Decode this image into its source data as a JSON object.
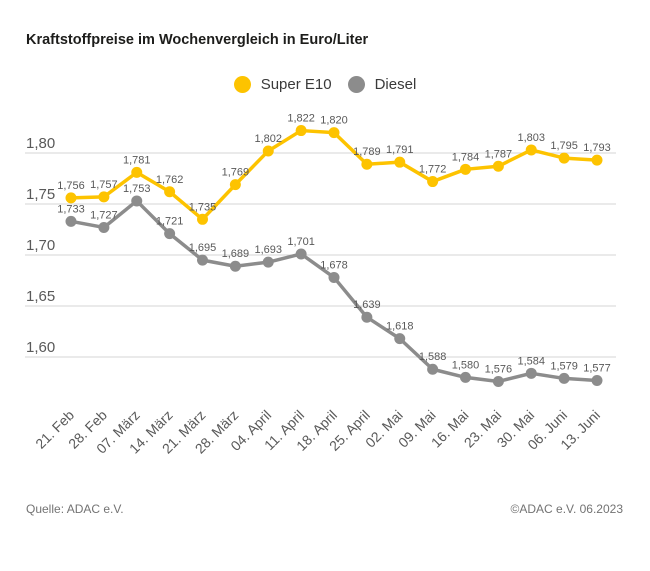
{
  "chart_data": {
    "type": "line",
    "title": "Kraftstoffpreise im Wochenvergleich in Euro/Liter",
    "categories": [
      "21. Feb",
      "28. Feb",
      "07. März",
      "14. März",
      "21. März",
      "28. März",
      "04. April",
      "11. April",
      "18. April",
      "25. April",
      "02. Mai",
      "09. Mai",
      "16. Mai",
      "23. Mai",
      "30. Mai",
      "06. Juni",
      "13. Juni"
    ],
    "series": [
      {
        "name": "Super E10",
        "color": "#fdc300",
        "values": [
          1.756,
          1.757,
          1.781,
          1.762,
          1.735,
          1.769,
          1.802,
          1.822,
          1.82,
          1.789,
          1.791,
          1.772,
          1.784,
          1.787,
          1.803,
          1.795,
          1.793
        ]
      },
      {
        "name": "Diesel",
        "color": "#8c8c8c",
        "values": [
          1.733,
          1.727,
          1.753,
          1.721,
          1.695,
          1.689,
          1.693,
          1.701,
          1.678,
          1.639,
          1.618,
          1.588,
          1.58,
          1.576,
          1.584,
          1.579,
          1.577
        ]
      }
    ],
    "yticks": [
      1.8,
      1.75,
      1.7,
      1.65,
      1.6
    ],
    "ylim": [
      1.56,
      1.84
    ],
    "xlabel": "",
    "ylabel": "",
    "unit": "Euro/Liter",
    "grid": true,
    "legend_position": "top-center",
    "point_labels": true,
    "decimal_format": "comma",
    "gridline_color": "#d4d4d4",
    "label_color": "#595959"
  },
  "footer": {
    "source": "Quelle: ADAC e.V.",
    "copyright": "©ADAC e.V. 06.2023"
  }
}
